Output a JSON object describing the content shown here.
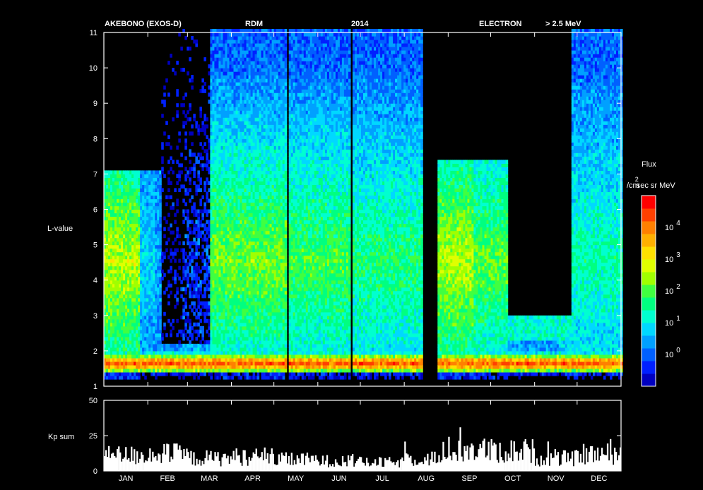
{
  "header": {
    "mission": "AKEBONO (EXOS-D)",
    "instrument": "RDM",
    "year": "2014",
    "particle": "ELECTRON",
    "energy": "> 2.5 MeV"
  },
  "colorbar": {
    "title": "Flux",
    "unit_base": "/cm",
    "unit_exp": "2",
    "unit_rest": "sec sr MeV",
    "ticks": [
      {
        "base": "10",
        "exp": "4"
      },
      {
        "base": "10",
        "exp": "3"
      },
      {
        "base": "10",
        "exp": "2"
      },
      {
        "base": "10",
        "exp": "1"
      },
      {
        "base": "10",
        "exp": "0"
      }
    ],
    "colors": [
      "#0000c0",
      "#0020ff",
      "#0060ff",
      "#00a0ff",
      "#00d8ff",
      "#00ffd0",
      "#00ff80",
      "#40ff40",
      "#a0ff00",
      "#e0ff00",
      "#ffe000",
      "#ffb000",
      "#ff8000",
      "#ff4000",
      "#ff0000"
    ]
  },
  "chart_data": [
    {
      "type": "heatmap",
      "title": "",
      "xlabel": "",
      "ylabel": "L-value",
      "ylim": [
        1,
        11
      ],
      "y_ticks": [
        "1",
        "2",
        "3",
        "4",
        "5",
        "6",
        "7",
        "8",
        "9",
        "10",
        "11"
      ],
      "months": [
        "JAN",
        "FEB",
        "MAR",
        "APR",
        "MAY",
        "JUN",
        "JUL",
        "AUG",
        "SEP",
        "OCT",
        "NOV",
        "DEC"
      ],
      "colorbar_label": "Flux /cm2 sec sr MeV",
      "log_flux_range": [
        -1,
        5
      ],
      "data_gaps": [
        {
          "start_day": 128,
          "end_day": 129
        },
        {
          "start_day": 173,
          "end_day": 174
        },
        {
          "start_day": 224,
          "end_day": 234
        }
      ]
    },
    {
      "type": "bar",
      "title": "",
      "xlabel": "",
      "ylabel": "Kp sum",
      "ylim": [
        0,
        50
      ],
      "y_ticks": [
        "0",
        "25",
        "50"
      ],
      "months": [
        "JAN",
        "FEB",
        "MAR",
        "APR",
        "MAY",
        "JUN",
        "JUL",
        "AUG",
        "SEP",
        "OCT",
        "NOV",
        "DEC"
      ],
      "monthly_mean_kp_sum": [
        11,
        12,
        9,
        10,
        8,
        7,
        6,
        9,
        15,
        14,
        9,
        12
      ],
      "peak_kp_sum": 34
    }
  ]
}
